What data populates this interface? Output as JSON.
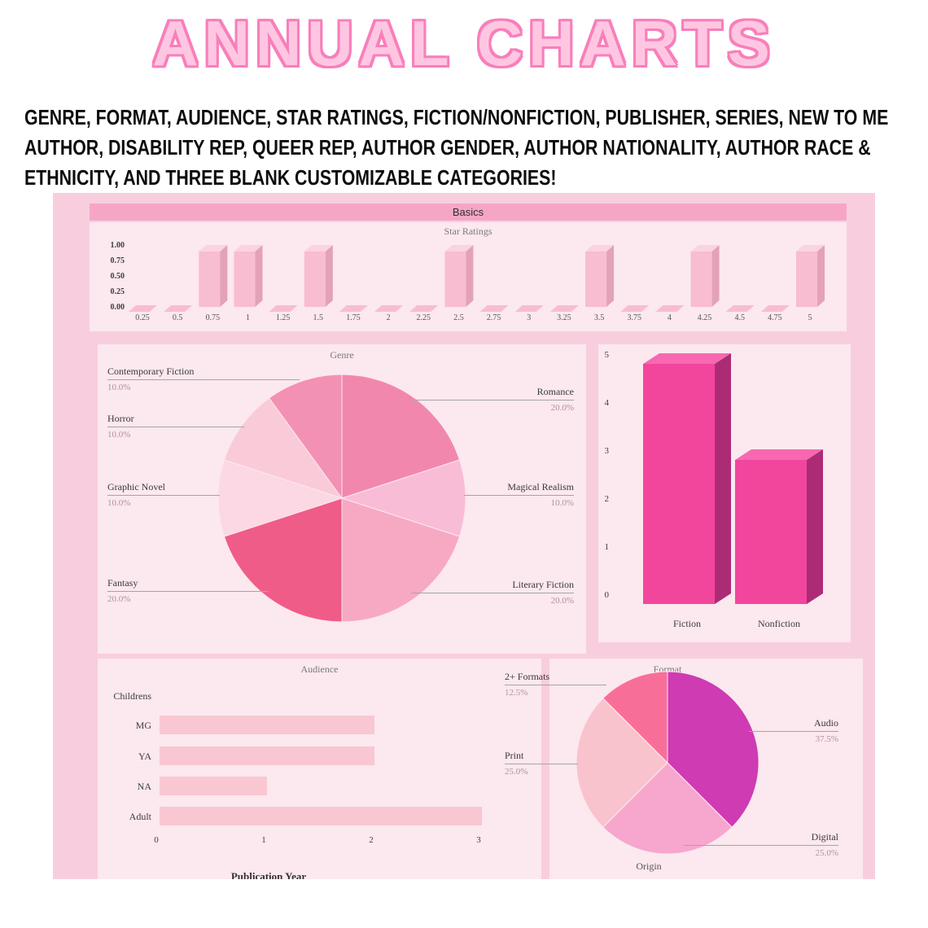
{
  "page": {
    "title": "ANNUAL CHARTS",
    "description_lines": [
      "GENRE, FORMAT, AUDIENCE, STAR RATINGS, FICTION/NONFICTION, PUBLISHER, SERIES, NEW TO ME",
      "AUTHOR, DISABILITY REP, QUEER REP, AUTHOR GENDER, AUTHOR NATIONALITY, AUTHOR RACE &",
      "ETHNICITY, AND THREE BLANK CUSTOMIZABLE CATEGORIES!"
    ]
  },
  "panel": {
    "header": "Basics",
    "bottom_section_labels": {
      "publication_year": "Publication Year",
      "origin": "Origin"
    }
  },
  "colors": {
    "panel_bg": "#f8cede",
    "chart_bg": "#fce8ef",
    "header_bar": "#f5a6c7",
    "title_fill": "#ffc6e2",
    "title_outline": "#f87fba"
  },
  "chart_data": [
    {
      "id": "star_ratings",
      "type": "bar",
      "title": "Star Ratings",
      "categories": [
        "0.25",
        "0.5",
        "0.75",
        "1",
        "1.25",
        "1.5",
        "1.75",
        "2",
        "2.25",
        "2.5",
        "2.75",
        "3",
        "3.25",
        "3.5",
        "3.75",
        "4",
        "4.25",
        "4.5",
        "4.75",
        "5"
      ],
      "values": [
        0,
        0,
        1,
        1,
        0,
        1,
        0,
        0,
        0,
        1,
        0,
        0,
        0,
        1,
        0,
        0,
        1,
        0,
        0,
        1
      ],
      "ylim": [
        0,
        1
      ],
      "yticks": [
        "1.00",
        "0.75",
        "0.50",
        "0.25",
        "0.00"
      ],
      "colors": {
        "front": "#f8bdd0",
        "top": "#fbd3e0",
        "side": "#e3a2b9"
      }
    },
    {
      "id": "genre",
      "type": "pie",
      "title": "Genre",
      "slices": [
        {
          "label": "Romance",
          "value": 20,
          "pct": "20.0%",
          "color": "#f287ae"
        },
        {
          "label": "Magical Realism",
          "value": 10,
          "pct": "10.0%",
          "color": "#f9bcd6"
        },
        {
          "label": "Literary Fiction",
          "value": 20,
          "pct": "20.0%",
          "color": "#f7a9c4"
        },
        {
          "label": "Fantasy",
          "value": 20,
          "pct": "20.0%",
          "color": "#ef5c88"
        },
        {
          "label": "Graphic Novel",
          "value": 10,
          "pct": "10.0%",
          "color": "#fbd8e3"
        },
        {
          "label": "Horror",
          "value": 10,
          "pct": "10.0%",
          "color": "#f9cbd8"
        },
        {
          "label": "Contemporary Fiction",
          "value": 10,
          "pct": "10.0%",
          "color": "#f291b4"
        }
      ]
    },
    {
      "id": "fiction_nonfiction",
      "type": "bar",
      "categories": [
        "Fiction",
        "Nonfiction"
      ],
      "values": [
        5,
        3
      ],
      "ylim": [
        0,
        5
      ],
      "yticks": [
        "5",
        "4",
        "3",
        "2",
        "1",
        "0"
      ],
      "colors": {
        "front": "#f2459c",
        "top": "#f768b1",
        "side": "#ab2c74"
      }
    },
    {
      "id": "audience",
      "type": "bar",
      "orientation": "horizontal",
      "title": "Audience",
      "categories": [
        "Childrens",
        "MG",
        "YA",
        "NA",
        "Adult"
      ],
      "values": [
        0,
        2,
        2,
        1,
        3
      ],
      "xlim": [
        0,
        3
      ],
      "xticks": [
        "0",
        "1",
        "2",
        "3"
      ],
      "bar_color": "#f9c7d2"
    },
    {
      "id": "format",
      "type": "pie",
      "title": "Format",
      "slices": [
        {
          "label": "Audio",
          "value": 37.5,
          "pct": "37.5%",
          "color": "#ce3bb2"
        },
        {
          "label": "Digital",
          "value": 25,
          "pct": "25.0%",
          "color": "#f7a6ce"
        },
        {
          "label": "Print",
          "value": 25,
          "pct": "25.0%",
          "color": "#f9c3cd"
        },
        {
          "label": "2+ Formats",
          "value": 12.5,
          "pct": "12.5%",
          "color": "#f76f99"
        }
      ]
    }
  ]
}
